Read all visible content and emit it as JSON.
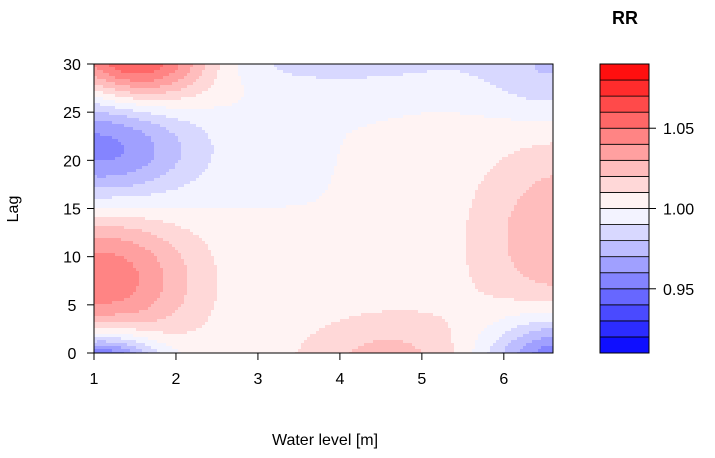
{
  "chart_data": {
    "type": "heatmap",
    "title": "",
    "xlabel": "Water level [m]",
    "ylabel": "Lag",
    "xlim": [
      1,
      6.6
    ],
    "ylim": [
      0,
      30
    ],
    "x_ticks": [
      "1",
      "2",
      "3",
      "4",
      "5",
      "6"
    ],
    "y_ticks": [
      "0",
      "5",
      "10",
      "15",
      "20",
      "25",
      "30"
    ],
    "legend": {
      "title": "RR",
      "placement": "right",
      "range": [
        0.91,
        1.09
      ],
      "ticks": [
        "0.95",
        "1.00",
        "1.05"
      ],
      "levels": 18
    },
    "colors": {
      "low": "#0000ff",
      "mid": "#ffffff",
      "high": "#ff0000"
    },
    "surface_features": [
      {
        "water_level": 1.5,
        "lag": 30.5,
        "rr": 1.075
      },
      {
        "water_level": 1.1,
        "lag": 21,
        "rr": 0.948
      },
      {
        "water_level": 1.1,
        "lag": 8.5,
        "rr": 1.05
      },
      {
        "water_level": 1.1,
        "lag": -1.5,
        "rr": 0.92
      },
      {
        "water_level": 4.6,
        "lag": -1.5,
        "rr": 1.025
      },
      {
        "water_level": 6.7,
        "lag": -1,
        "rr": 0.94
      },
      {
        "water_level": 6.8,
        "lag": 12,
        "rr": 1.03
      },
      {
        "water_level": 4.0,
        "lag": 30.5,
        "rr": 0.985
      },
      {
        "water_level": 6.6,
        "lag": 29,
        "rr": 0.98
      }
    ]
  }
}
